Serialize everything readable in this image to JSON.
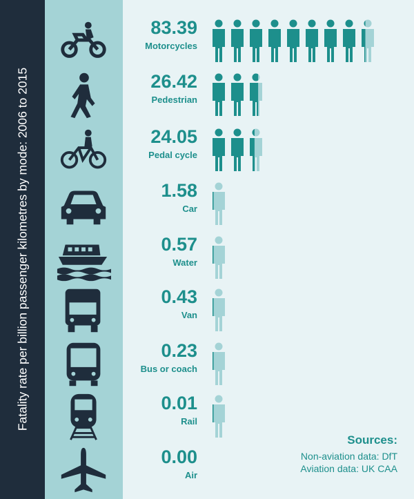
{
  "title": "Fatality rate per billion passenger kilometres by mode: 2006 to 2015",
  "colors": {
    "sidebar": "#1f2d3c",
    "icon_band": "#a4d3d6",
    "background": "#e8f3f5",
    "teal": "#1d8f8c",
    "light_teal": "#a4d3d6",
    "icon": "#1f2d3c"
  },
  "chart_data": {
    "type": "bar",
    "title": "Fatality rate per billion passenger kilometres by mode: 2006 to 2015",
    "categories": [
      "Motorcycles",
      "Pedestrian",
      "Pedal cycle",
      "Car",
      "Water",
      "Van",
      "Bus or coach",
      "Rail",
      "Air"
    ],
    "values": [
      83.39,
      26.42,
      24.05,
      1.58,
      0.57,
      0.43,
      0.23,
      0.01,
      0.0
    ],
    "value_labels": [
      "83.39",
      "26.42",
      "24.05",
      "1.58",
      "0.57",
      "0.43",
      "0.23",
      "0.01",
      "0.00"
    ],
    "icons": [
      "motorcycle-icon",
      "pedestrian-icon",
      "bicycle-icon",
      "car-icon",
      "boat-icon",
      "van-icon",
      "bus-icon",
      "train-icon",
      "plane-icon"
    ],
    "units_per_figure": 10
  },
  "sources": {
    "heading": "Sources:",
    "lines": [
      "Non-aviation data: DfT",
      "Aviation data: UK CAA"
    ]
  }
}
